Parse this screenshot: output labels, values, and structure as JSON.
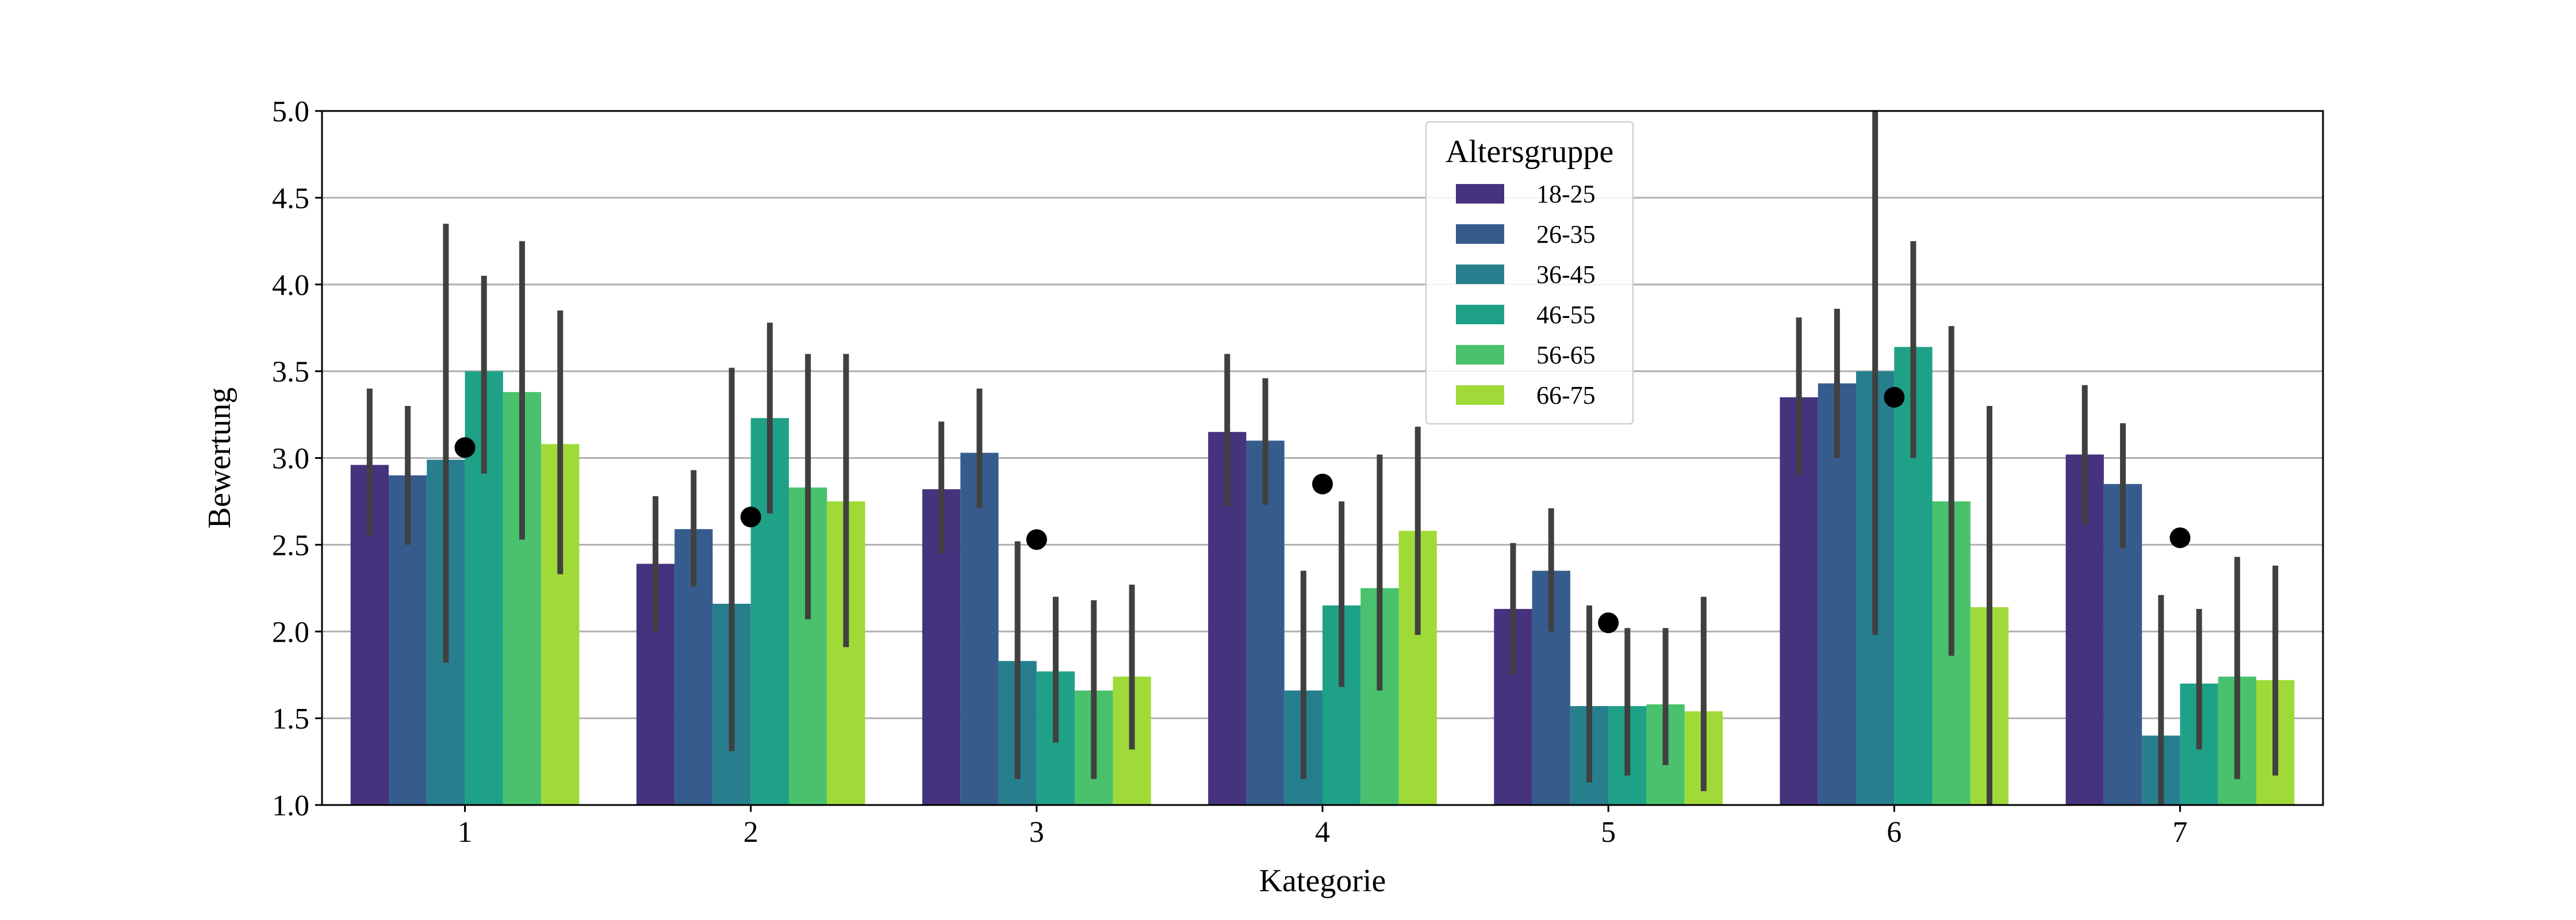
{
  "chart_data": {
    "type": "bar",
    "xlabel": "Kategorie",
    "ylabel": "Bewertung",
    "ylim": [
      1.0,
      5.0
    ],
    "yticks": [
      "1.0",
      "1.5",
      "2.0",
      "2.5",
      "3.0",
      "3.5",
      "4.0",
      "4.5",
      "5.0"
    ],
    "categories": [
      "1",
      "2",
      "3",
      "4",
      "5",
      "6",
      "7"
    ],
    "grid": "horizontal",
    "legend": {
      "title": "Altersgruppe",
      "placement": "upper-center"
    },
    "series": [
      {
        "name": "18-25",
        "color": "#46337e",
        "values": [
          2.96,
          2.39,
          2.82,
          3.15,
          2.13,
          3.35,
          3.02
        ],
        "err_low": [
          2.55,
          2.0,
          2.45,
          2.72,
          1.75,
          2.9,
          2.62
        ],
        "err_high": [
          3.4,
          2.78,
          3.21,
          3.6,
          2.51,
          3.81,
          3.42
        ]
      },
      {
        "name": "26-35",
        "color": "#365c8d",
        "values": [
          2.9,
          2.59,
          3.03,
          3.1,
          2.35,
          3.43,
          2.85
        ],
        "err_low": [
          2.5,
          2.26,
          2.71,
          2.73,
          2.0,
          3.0,
          2.48
        ],
        "err_high": [
          3.3,
          2.93,
          3.4,
          3.46,
          2.71,
          3.86,
          3.2
        ]
      },
      {
        "name": "36-45",
        "color": "#277f8e",
        "values": [
          2.99,
          2.16,
          1.83,
          1.66,
          1.57,
          3.5,
          1.4
        ],
        "err_low": [
          1.82,
          1.31,
          1.15,
          1.15,
          1.13,
          1.98,
          1.0
        ],
        "err_high": [
          4.35,
          3.52,
          2.52,
          2.35,
          2.15,
          5.0,
          2.21
        ]
      },
      {
        "name": "46-55",
        "color": "#1fa187",
        "values": [
          3.5,
          3.23,
          1.77,
          2.15,
          1.57,
          3.64,
          1.7
        ],
        "err_low": [
          2.91,
          2.68,
          1.36,
          1.68,
          1.17,
          3.0,
          1.32
        ],
        "err_high": [
          4.05,
          3.78,
          2.2,
          2.75,
          2.02,
          4.25,
          2.13
        ]
      },
      {
        "name": "56-65",
        "color": "#4ac16d",
        "values": [
          3.38,
          2.83,
          1.66,
          2.25,
          1.58,
          2.75,
          1.74
        ],
        "err_low": [
          2.53,
          2.07,
          1.15,
          1.66,
          1.23,
          1.86,
          1.15
        ],
        "err_high": [
          4.25,
          3.6,
          2.18,
          3.02,
          2.02,
          3.76,
          2.43
        ]
      },
      {
        "name": "66-75",
        "color": "#a0da39",
        "values": [
          3.08,
          2.75,
          1.74,
          2.58,
          1.54,
          2.14,
          1.72
        ],
        "err_low": [
          2.33,
          1.91,
          1.32,
          1.98,
          1.08,
          1.0,
          1.17
        ],
        "err_high": [
          3.85,
          3.6,
          2.27,
          3.18,
          2.2,
          3.3,
          2.38
        ]
      }
    ],
    "means": {
      "color": "#000000",
      "values": [
        3.06,
        2.66,
        2.53,
        2.85,
        2.05,
        3.35,
        2.54
      ]
    },
    "errorbar_color": "#404040",
    "grid_color": "#b0b0b0"
  }
}
